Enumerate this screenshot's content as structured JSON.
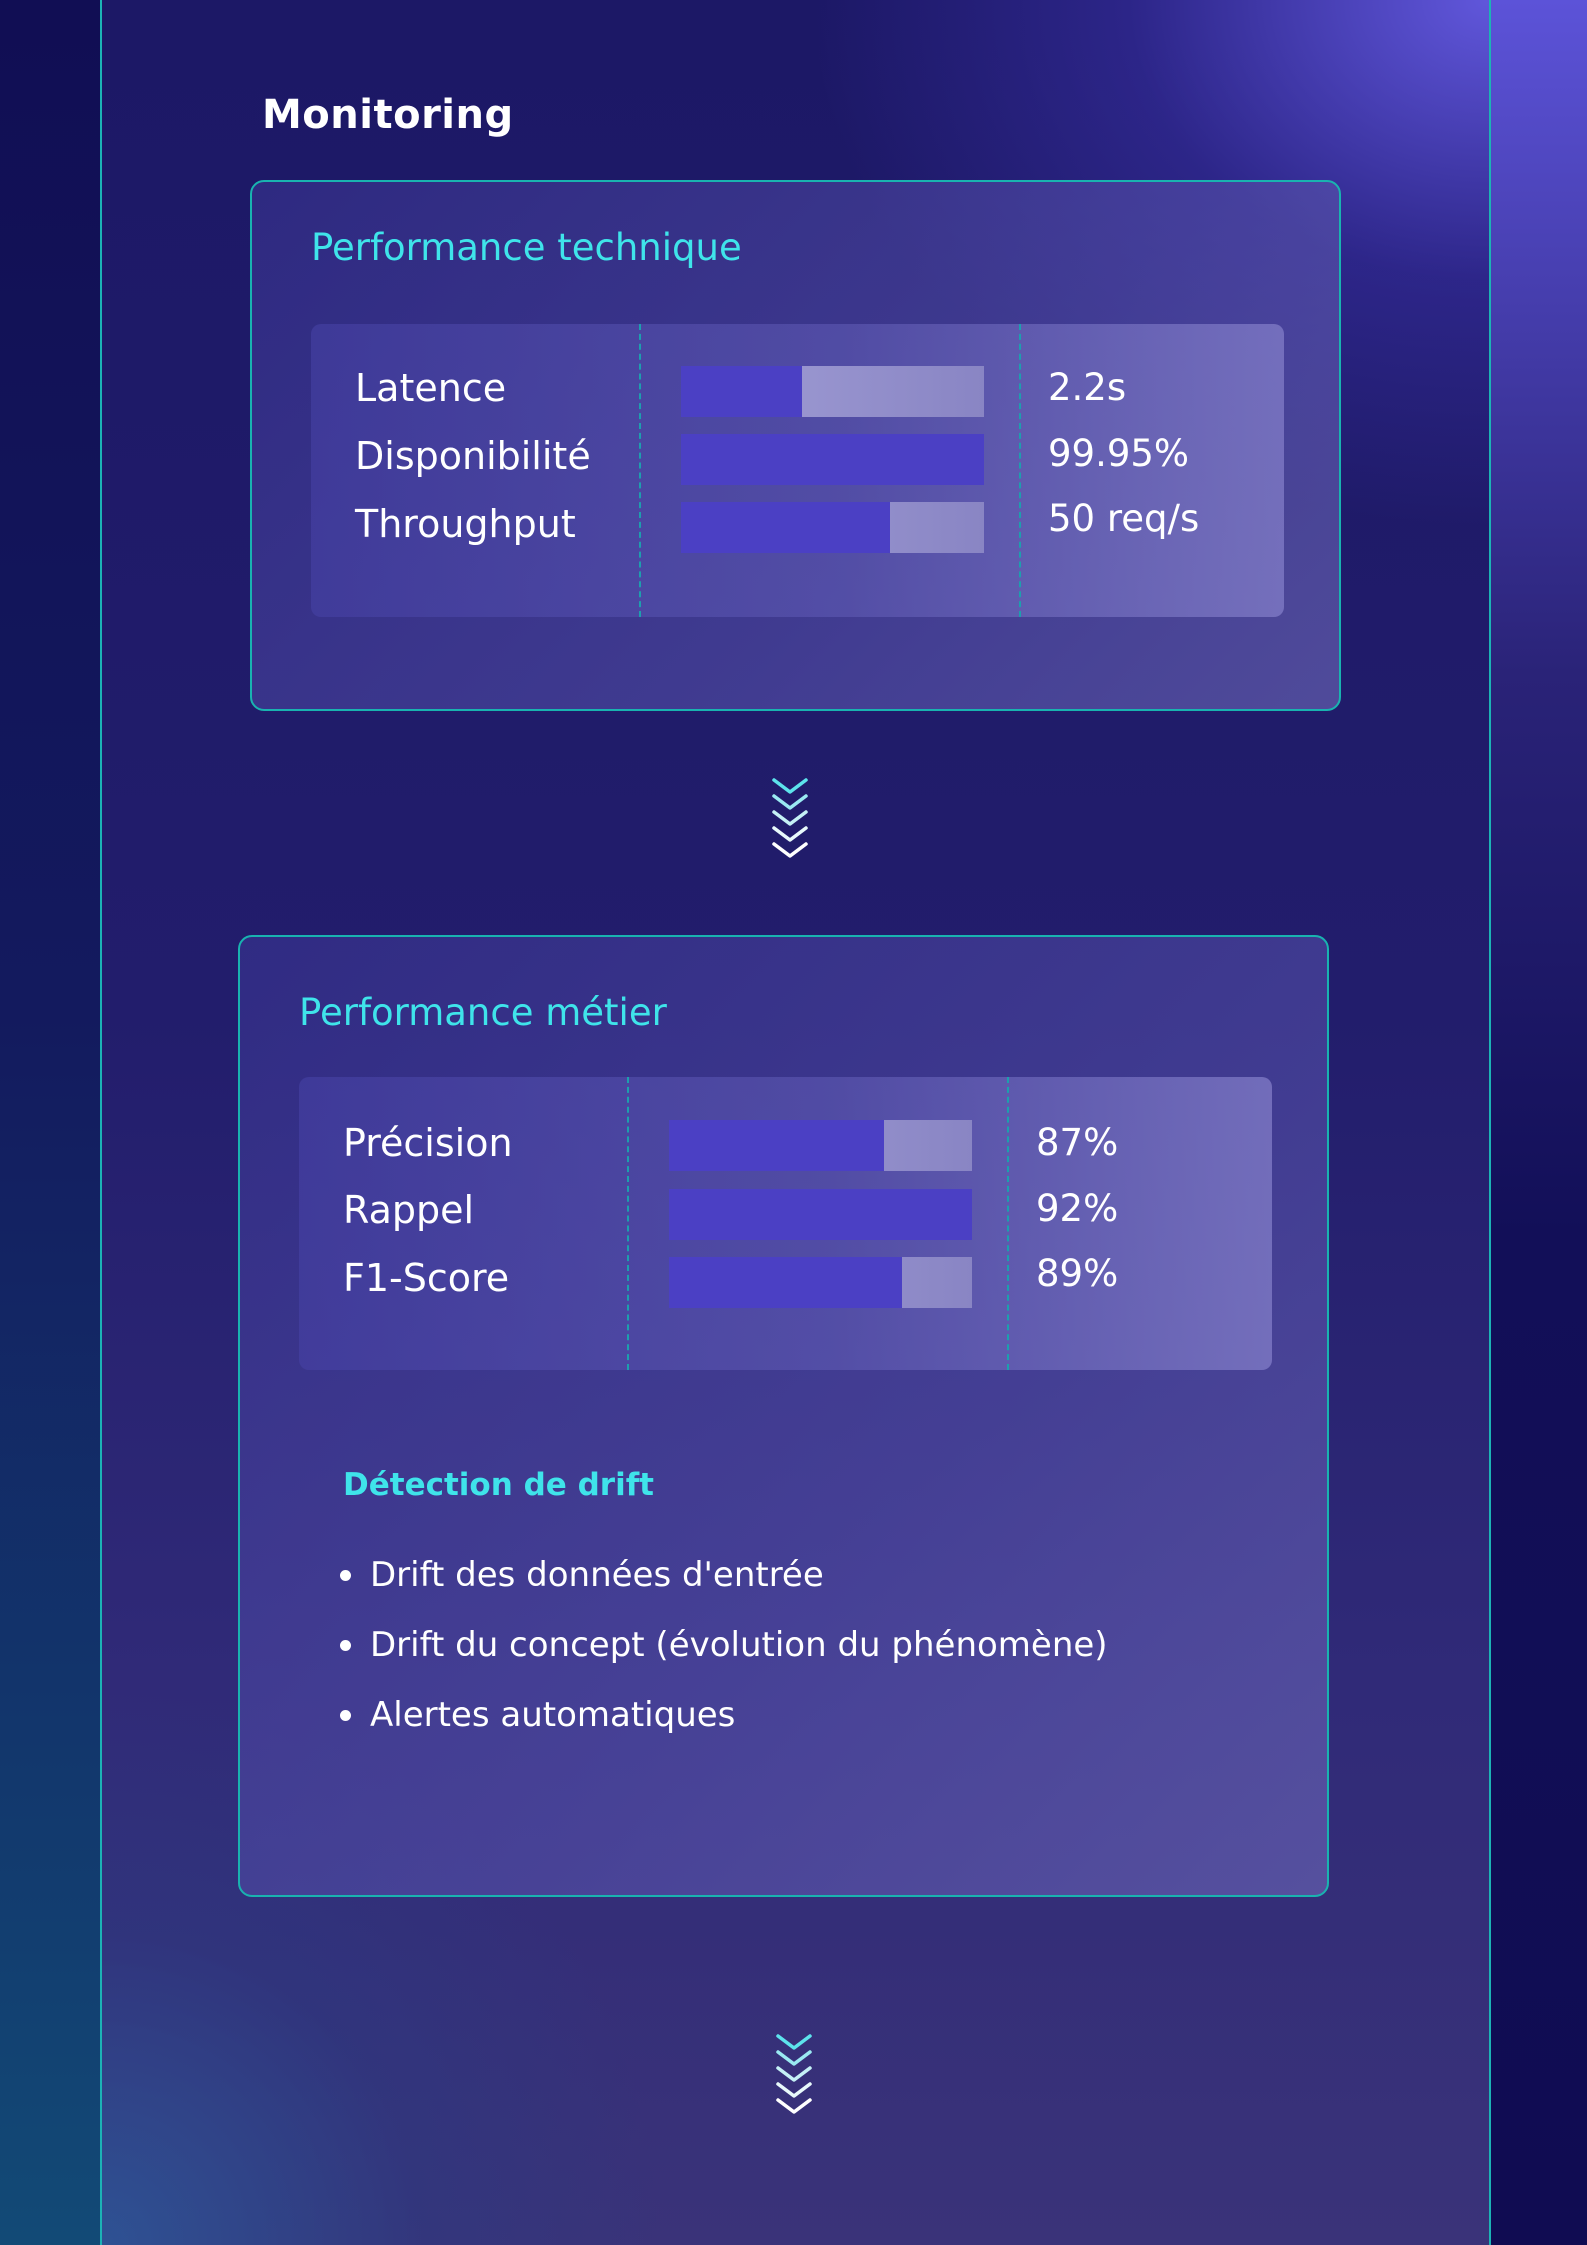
{
  "page": {
    "title": "Monitoring"
  },
  "colors": {
    "accent": "#3fe4ea",
    "border": "#19b3b0",
    "bar_fill": "#4b40c4",
    "bar_track": "#9a97d2"
  },
  "technical": {
    "title": "Performance technique",
    "metrics": [
      {
        "label": "Latence",
        "value": "2.2s",
        "fill_fraction": 0.4
      },
      {
        "label": "Disponibilité",
        "value": "99.95%",
        "fill_fraction": 1.0
      },
      {
        "label": "Throughput",
        "value": "50 req/s",
        "fill_fraction": 0.69
      }
    ]
  },
  "business": {
    "title": "Performance métier",
    "metrics": [
      {
        "label": "Précision",
        "value": "87%",
        "fill_fraction": 0.71
      },
      {
        "label": "Rappel",
        "value": "92%",
        "fill_fraction": 1.0
      },
      {
        "label": "F1-Score",
        "value": "89%",
        "fill_fraction": 0.77
      }
    ],
    "drift": {
      "title": "Détection de drift",
      "items": [
        "Drift des données d'entrée",
        "Drift du concept (évolution du phénomène)",
        "Alertes automatiques"
      ]
    }
  },
  "connectors": [
    {
      "icon": "chevrons-down-icon"
    },
    {
      "icon": "chevrons-down-icon"
    }
  ]
}
